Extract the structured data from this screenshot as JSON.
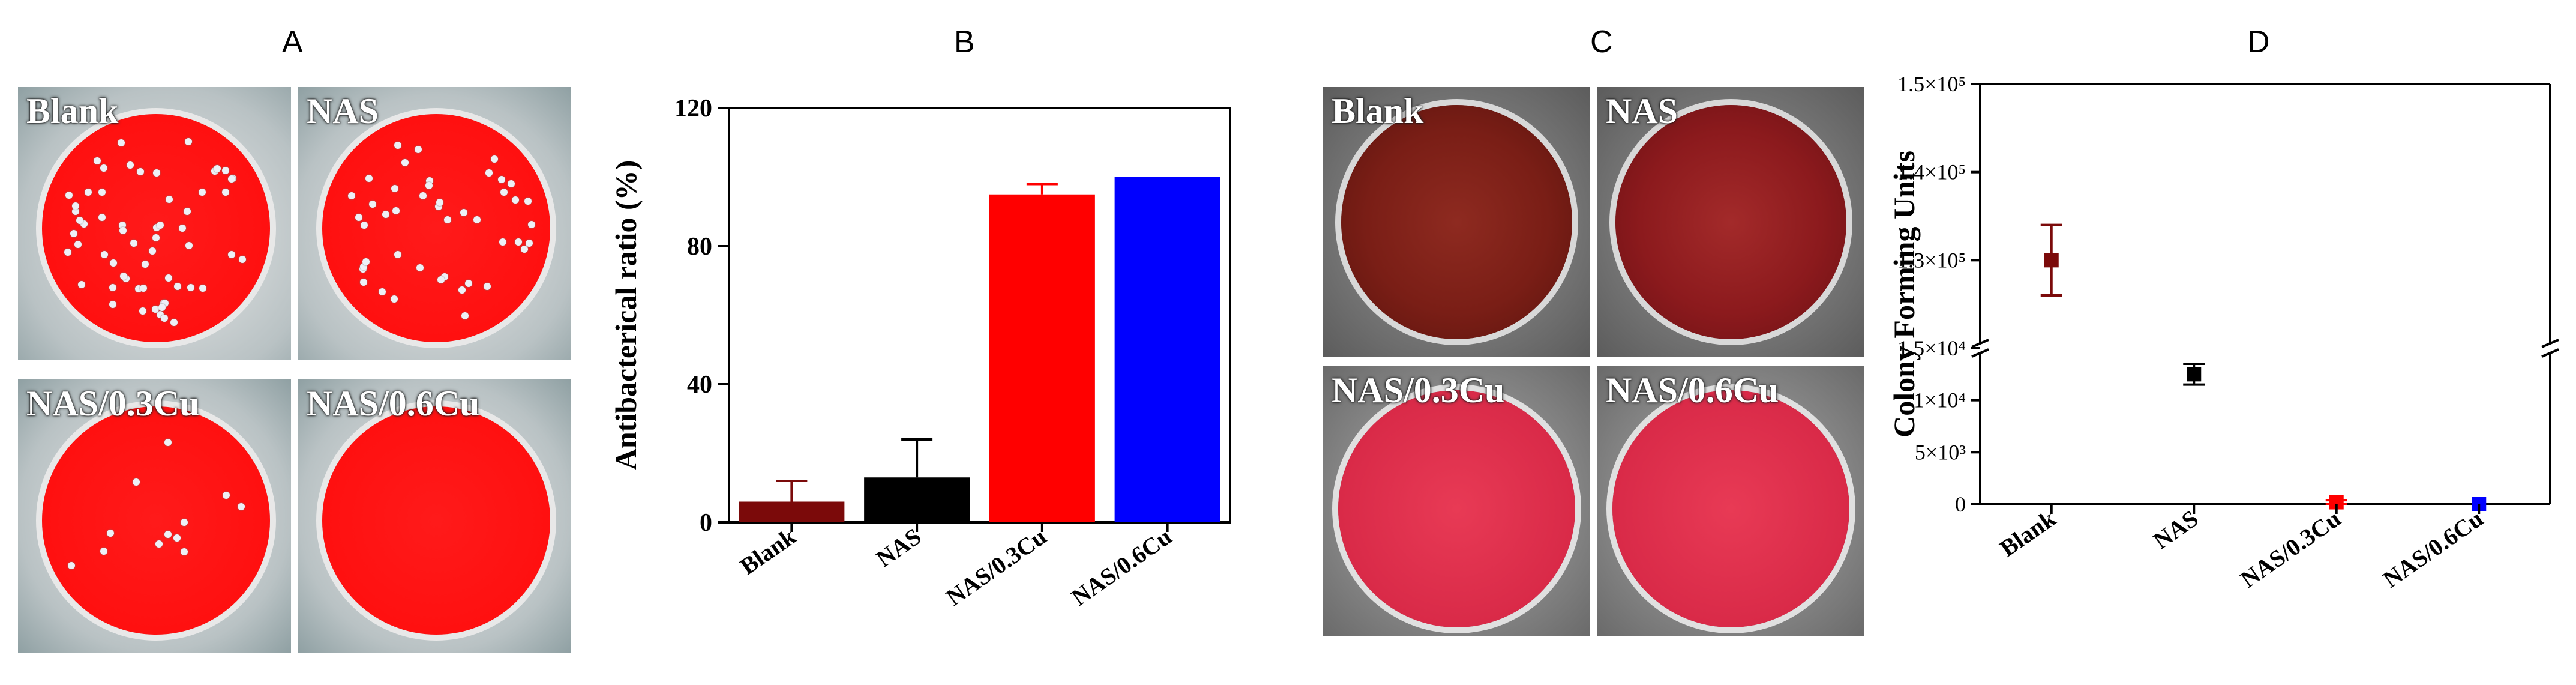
{
  "panels": {
    "A": "A",
    "B": "B",
    "C": "C",
    "D": "D"
  },
  "plates_A": [
    {
      "label": "Blank",
      "colonies": 60
    },
    {
      "label": "NAS",
      "colonies": 45
    },
    {
      "label": "NAS/0.3Cu",
      "colonies": 12
    },
    {
      "label": "NAS/0.6Cu",
      "colonies": 0
    }
  ],
  "plates_C": [
    {
      "label": "Blank",
      "lawn": "dense"
    },
    {
      "label": "NAS",
      "lawn": "heavy"
    },
    {
      "label": "NAS/0.3Cu",
      "lawn": "clear"
    },
    {
      "label": "NAS/0.6Cu",
      "lawn": "clear"
    }
  ],
  "chart_data": [
    {
      "panel": "B",
      "type": "bar",
      "categories": [
        "Blank",
        "NAS",
        "NAS/0.3Cu",
        "NAS/0.6Cu"
      ],
      "values": [
        6,
        13,
        95,
        100
      ],
      "errors": [
        6,
        11,
        3,
        0
      ],
      "colors": [
        "#7b0a0a",
        "#000000",
        "#ff0000",
        "#0000ff"
      ],
      "ylabel": "Antibacterical ratio (%)",
      "ylim": [
        0,
        120
      ],
      "yticks": [
        "0",
        "40",
        "80",
        "120"
      ]
    },
    {
      "panel": "D",
      "type": "scatter",
      "categories": [
        "Blank",
        "NAS",
        "NAS/0.3Cu",
        "NAS/0.6Cu"
      ],
      "values": [
        130000,
        12500,
        200,
        0
      ],
      "errors": [
        4000,
        1000,
        200,
        0
      ],
      "colors": [
        "#7b0a0a",
        "#000000",
        "#ff0000",
        "#0000ff"
      ],
      "ylabel": "Colony Forming Units",
      "axis_break": true,
      "ylim_lower": [
        0,
        15000
      ],
      "ylim_upper": [
        120000,
        150000
      ],
      "yticks_lower": [
        "0",
        "5×10³",
        "1×10⁴",
        "1.5×10⁴"
      ],
      "yticks_upper": [
        "1.3×10⁵",
        "1.4×10⁵",
        "1.5×10⁵"
      ]
    }
  ]
}
